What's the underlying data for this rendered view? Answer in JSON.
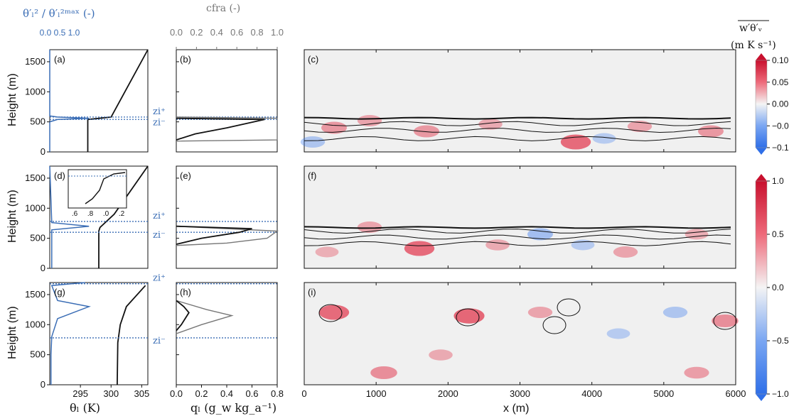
{
  "colors": {
    "profile_blue": "#3a6db5",
    "zi_blue": "#3a6db5",
    "grey_curve": "#777777",
    "field_bg": "#f0f0f0",
    "pos": "#e0243c",
    "neg": "#3f7df0"
  },
  "header": {
    "var_ratio_label": "θ′ₗ² / θ′ₗ²ᵐᵃˣ  (-)",
    "var_ratio_ticks": [
      "0.0",
      "0.5",
      "1.0"
    ],
    "cfra_label": "cfra (-)",
    "cfra_ticks": [
      "0.0",
      "0.2",
      "0.4",
      "0.6",
      "0.8",
      "1.0"
    ],
    "flux_label": "w′θ′ᵥ",
    "flux_units": "(m K s⁻¹)"
  },
  "axes": {
    "height_label": "Height (m)",
    "height_ticks": [
      "0",
      "500",
      "1000",
      "1500"
    ],
    "theta_label": "θₗ (K)",
    "theta_ticks": [
      "295",
      "300",
      "305"
    ],
    "ql_label": "qₗ (g_w kg_a⁻¹)",
    "ql_ticks": [
      "0.0",
      "0.2",
      "0.4",
      "0.6",
      "0.8"
    ],
    "x_label": "x (m)",
    "x_ticks": [
      "0",
      "1000",
      "2000",
      "3000",
      "4000",
      "5000",
      "6000"
    ],
    "zi_plus": "zi⁺",
    "zi_minus": "zi⁻"
  },
  "panels": [
    "(a)",
    "(b)",
    "(c)",
    "(d)",
    "(e)",
    "(f)",
    "(g)",
    "(h)",
    "(i)"
  ],
  "inset": {
    "ticks": [
      ".6",
      ".8",
      ".0",
      ".2"
    ]
  },
  "colorbars": [
    {
      "ticks": [
        "0.10",
        "0.05",
        "0.00",
        "−0.05",
        "−0.10"
      ],
      "range": [
        -0.1,
        0.1
      ]
    },
    {
      "ticks": [
        "1.0",
        "0.5",
        "0.0",
        "−0.5",
        "−1.0"
      ],
      "range": [
        -1.0,
        1.0
      ]
    },
    {
      "ticks": [],
      "range": [
        -1.0,
        1.0
      ]
    }
  ],
  "chart_data": {
    "type": "line",
    "rows": [
      {
        "zi_plus": 580,
        "zi_minus": 540,
        "theta_l": {
          "z": [
            0,
            540,
            580,
            1700
          ],
          "values": [
            296.2,
            296.2,
            300.0,
            306.0
          ]
        },
        "var_ratio": {
          "z": [
            0,
            500,
            540,
            560,
            580,
            600,
            1700
          ],
          "values": [
            0,
            0,
            0.2,
            1.0,
            0.2,
            0,
            0
          ]
        },
        "q_l": {
          "z": [
            200,
            300,
            400,
            540,
            560
          ],
          "values": [
            0.0,
            0.15,
            0.4,
            0.7,
            0.0
          ]
        },
        "cfra": {
          "z": [
            180,
            200,
            560,
            580
          ],
          "values": [
            0.0,
            1.0,
            1.0,
            0.0
          ]
        },
        "flux_range": [
          -0.1,
          0.1
        ]
      },
      {
        "zi_plus": 780,
        "zi_minus": 600,
        "theta_l": {
          "z": [
            0,
            620,
            680,
            900,
            1700
          ],
          "values": [
            298.0,
            298.0,
            298.2,
            300.5,
            306.0
          ]
        },
        "var_ratio": {
          "z": [
            0,
            640,
            700,
            760,
            1700
          ],
          "values": [
            0.05,
            0.05,
            1.0,
            0.05,
            0
          ]
        },
        "q_l": {
          "z": [
            400,
            500,
            600,
            660,
            700
          ],
          "values": [
            0.0,
            0.2,
            0.5,
            0.6,
            0.0
          ]
        },
        "cfra": {
          "z": [
            380,
            420,
            500,
            620,
            700
          ],
          "values": [
            0.0,
            0.5,
            0.9,
            1.0,
            0.0
          ]
        },
        "flux_range": [
          -1.0,
          1.0
        ]
      },
      {
        "zi_plus": 1680,
        "zi_minus": 780,
        "theta_l": {
          "z": [
            0,
            700,
            1000,
            1300,
            1650
          ],
          "values": [
            301.0,
            301.1,
            301.5,
            302.5,
            305.6
          ]
        },
        "var_ratio": {
          "z": [
            0,
            500,
            800,
            1100,
            1300,
            1400,
            1650,
            1700
          ],
          "values": [
            0.03,
            0.03,
            0.05,
            0.2,
            1.0,
            0.2,
            0.05,
            0.9
          ]
        },
        "q_l": {
          "z": [
            900,
            1000,
            1200,
            1300,
            1400
          ],
          "values": [
            0.0,
            0.04,
            0.1,
            0.06,
            0.0
          ]
        },
        "cfra": {
          "z": [
            850,
            1000,
            1150,
            1250,
            1400
          ],
          "values": [
            0.0,
            0.25,
            0.55,
            0.3,
            0.0
          ]
        },
        "flux_range": [
          -1.0,
          1.0
        ]
      }
    ],
    "ylim": [
      0,
      1700
    ],
    "theta_xlim": [
      290,
      306
    ],
    "ql_xlim": [
      0,
      0.8
    ],
    "cfra_xlim": [
      0,
      1
    ],
    "x_xlim": [
      0,
      6000
    ]
  }
}
